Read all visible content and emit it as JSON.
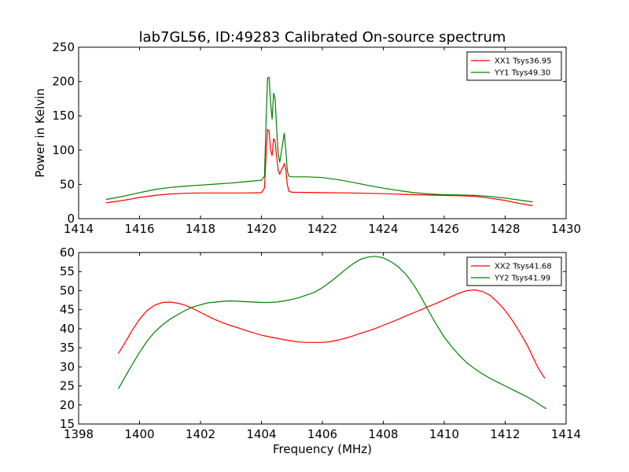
{
  "figure": {
    "title": "lab7GL56, ID:49283 Calibrated On-source spectrum"
  },
  "chart_data": [
    {
      "type": "line",
      "title": "",
      "xlabel": "",
      "ylabel": "Power in Kelvin",
      "xlim": [
        1414,
        1430
      ],
      "ylim": [
        0,
        250
      ],
      "xticks": [
        "1414",
        "1416",
        "1418",
        "1420",
        "1422",
        "1424",
        "1426",
        "1428",
        "1430"
      ],
      "yticks": [
        "0",
        "50",
        "100",
        "150",
        "200",
        "250"
      ],
      "legend_position": "top-right",
      "grid": false,
      "series": [
        {
          "name": "XX1 Tsys36.95",
          "color": "#ff0000",
          "points": [
            [
              1414.9,
              23
            ],
            [
              1415.5,
              27
            ],
            [
              1416.0,
              31
            ],
            [
              1416.5,
              34
            ],
            [
              1417.0,
              36
            ],
            [
              1417.5,
              37
            ],
            [
              1418.0,
              37.5
            ],
            [
              1418.5,
              37.5
            ],
            [
              1419.0,
              37.5
            ],
            [
              1419.5,
              37.5
            ],
            [
              1420.0,
              38
            ],
            [
              1420.1,
              45
            ],
            [
              1420.15,
              90
            ],
            [
              1420.2,
              130
            ],
            [
              1420.25,
              128
            ],
            [
              1420.3,
              100
            ],
            [
              1420.35,
              92
            ],
            [
              1420.4,
              117
            ],
            [
              1420.45,
              112
            ],
            [
              1420.5,
              90
            ],
            [
              1420.55,
              70
            ],
            [
              1420.6,
              65
            ],
            [
              1420.7,
              75
            ],
            [
              1420.75,
              80
            ],
            [
              1420.8,
              72
            ],
            [
              1420.85,
              50
            ],
            [
              1420.9,
              40
            ],
            [
              1421.0,
              38.5
            ],
            [
              1422.0,
              38
            ],
            [
              1423.0,
              37.5
            ],
            [
              1424.0,
              36.5
            ],
            [
              1425.0,
              35
            ],
            [
              1426.0,
              34
            ],
            [
              1426.5,
              33.5
            ],
            [
              1427.0,
              32.5
            ],
            [
              1427.5,
              30
            ],
            [
              1428.0,
              26.5
            ],
            [
              1428.5,
              22
            ],
            [
              1428.9,
              19
            ]
          ]
        },
        {
          "name": "YY1 Tsys49.30",
          "color": "#008000",
          "points": [
            [
              1414.9,
              28
            ],
            [
              1415.5,
              33
            ],
            [
              1416.0,
              38
            ],
            [
              1416.5,
              42.5
            ],
            [
              1417.0,
              45.5
            ],
            [
              1417.5,
              47.5
            ],
            [
              1418.0,
              49
            ],
            [
              1418.5,
              50.5
            ],
            [
              1419.0,
              52
            ],
            [
              1419.5,
              54
            ],
            [
              1420.0,
              56
            ],
            [
              1420.1,
              62
            ],
            [
              1420.15,
              140
            ],
            [
              1420.2,
              205
            ],
            [
              1420.25,
              206
            ],
            [
              1420.3,
              170
            ],
            [
              1420.35,
              145
            ],
            [
              1420.4,
              183
            ],
            [
              1420.45,
              175
            ],
            [
              1420.5,
              130
            ],
            [
              1420.55,
              95
            ],
            [
              1420.6,
              82
            ],
            [
              1420.7,
              110
            ],
            [
              1420.75,
              125
            ],
            [
              1420.8,
              100
            ],
            [
              1420.85,
              70
            ],
            [
              1420.9,
              62
            ],
            [
              1421.0,
              61
            ],
            [
              1421.5,
              61
            ],
            [
              1422.0,
              60
            ],
            [
              1422.5,
              57
            ],
            [
              1423.0,
              53
            ],
            [
              1423.5,
              48.5
            ],
            [
              1424.0,
              44.5
            ],
            [
              1424.5,
              41
            ],
            [
              1425.0,
              38
            ],
            [
              1425.5,
              36
            ],
            [
              1426.0,
              35
            ],
            [
              1426.5,
              34.5
            ],
            [
              1427.0,
              34
            ],
            [
              1427.5,
              32.5
            ],
            [
              1428.0,
              30
            ],
            [
              1428.5,
              27
            ],
            [
              1428.9,
              24.5
            ]
          ]
        }
      ]
    },
    {
      "type": "line",
      "title": "",
      "xlabel": "Frequency (MHz)",
      "ylabel": "",
      "xlim": [
        1398,
        1414
      ],
      "ylim": [
        15,
        60
      ],
      "xticks": [
        "1398",
        "1400",
        "1402",
        "1404",
        "1406",
        "1408",
        "1410",
        "1412",
        "1414"
      ],
      "yticks": [
        "15",
        "20",
        "25",
        "30",
        "35",
        "40",
        "45",
        "50",
        "55",
        "60"
      ],
      "legend_position": "top-right",
      "grid": false,
      "series": [
        {
          "name": "XX2 Tsys41.68",
          "color": "#ff0000",
          "points": [
            [
              1399.3,
              33.5
            ],
            [
              1399.5,
              36
            ],
            [
              1399.75,
              39.5
            ],
            [
              1400.0,
              42.5
            ],
            [
              1400.25,
              44.8
            ],
            [
              1400.5,
              46.2
            ],
            [
              1400.75,
              46.9
            ],
            [
              1401.0,
              47
            ],
            [
              1401.25,
              46.7
            ],
            [
              1401.5,
              46.2
            ],
            [
              1401.75,
              45.3
            ],
            [
              1402.0,
              44.3
            ],
            [
              1402.25,
              43.3
            ],
            [
              1402.5,
              42.3
            ],
            [
              1402.75,
              41.5
            ],
            [
              1403.0,
              40.8
            ],
            [
              1403.25,
              40.2
            ],
            [
              1403.5,
              39.5
            ],
            [
              1403.75,
              38.9
            ],
            [
              1404.0,
              38.3
            ],
            [
              1404.25,
              37.9
            ],
            [
              1404.5,
              37.5
            ],
            [
              1404.75,
              37.1
            ],
            [
              1405.0,
              36.8
            ],
            [
              1405.25,
              36.5
            ],
            [
              1405.5,
              36.4
            ],
            [
              1405.75,
              36.4
            ],
            [
              1406.0,
              36.4
            ],
            [
              1406.25,
              36.6
            ],
            [
              1406.5,
              37
            ],
            [
              1406.75,
              37.5
            ],
            [
              1407.0,
              38.1
            ],
            [
              1407.25,
              38.8
            ],
            [
              1407.5,
              39.4
            ],
            [
              1407.75,
              40.1
            ],
            [
              1408.0,
              40.9
            ],
            [
              1408.25,
              41.7
            ],
            [
              1408.5,
              42.5
            ],
            [
              1408.75,
              43.4
            ],
            [
              1409.0,
              44.2
            ],
            [
              1409.25,
              45
            ],
            [
              1409.5,
              45.9
            ],
            [
              1409.75,
              46.7
            ],
            [
              1410.0,
              47.6
            ],
            [
              1410.25,
              48.5
            ],
            [
              1410.5,
              49.4
            ],
            [
              1410.75,
              50
            ],
            [
              1411.0,
              50.2
            ],
            [
              1411.25,
              49.8
            ],
            [
              1411.5,
              48.8
            ],
            [
              1411.75,
              47
            ],
            [
              1412.0,
              44.8
            ],
            [
              1412.25,
              42
            ],
            [
              1412.5,
              38.8
            ],
            [
              1412.75,
              35.3
            ],
            [
              1413.0,
              31
            ],
            [
              1413.1,
              29.5
            ],
            [
              1413.3,
              27
            ]
          ]
        },
        {
          "name": "YY2 Tsys41.99",
          "color": "#008000",
          "points": [
            [
              1399.3,
              24.2
            ],
            [
              1399.5,
              27
            ],
            [
              1399.75,
              30.5
            ],
            [
              1400.0,
              33.8
            ],
            [
              1400.25,
              36.8
            ],
            [
              1400.5,
              39.2
            ],
            [
              1400.75,
              41
            ],
            [
              1401.0,
              42.5
            ],
            [
              1401.25,
              43.7
            ],
            [
              1401.5,
              44.8
            ],
            [
              1401.75,
              45.7
            ],
            [
              1402.0,
              46.3
            ],
            [
              1402.25,
              46.8
            ],
            [
              1402.5,
              47
            ],
            [
              1402.75,
              47.2
            ],
            [
              1403.0,
              47.3
            ],
            [
              1403.25,
              47.2
            ],
            [
              1403.5,
              47.1
            ],
            [
              1403.75,
              47
            ],
            [
              1404.0,
              46.9
            ],
            [
              1404.25,
              46.9
            ],
            [
              1404.5,
              47
            ],
            [
              1404.75,
              47.3
            ],
            [
              1405.0,
              47.7
            ],
            [
              1405.25,
              48.2
            ],
            [
              1405.5,
              48.9
            ],
            [
              1405.75,
              49.6
            ],
            [
              1406.0,
              50.8
            ],
            [
              1406.25,
              52.2
            ],
            [
              1406.5,
              53.8
            ],
            [
              1406.75,
              55.5
            ],
            [
              1407.0,
              57
            ],
            [
              1407.25,
              58.2
            ],
            [
              1407.5,
              58.8
            ],
            [
              1407.75,
              59
            ],
            [
              1408.0,
              58.6
            ],
            [
              1408.25,
              57.6
            ],
            [
              1408.5,
              56.2
            ],
            [
              1408.75,
              54.2
            ],
            [
              1409.0,
              51.5
            ],
            [
              1409.25,
              48.2
            ],
            [
              1409.5,
              44.5
            ],
            [
              1409.75,
              41
            ],
            [
              1410.0,
              37.8
            ],
            [
              1410.25,
              35.2
            ],
            [
              1410.5,
              33
            ],
            [
              1410.75,
              31
            ],
            [
              1411.0,
              29.5
            ],
            [
              1411.25,
              28.2
            ],
            [
              1411.5,
              27
            ],
            [
              1411.75,
              26
            ],
            [
              1412.0,
              25
            ],
            [
              1412.25,
              24
            ],
            [
              1412.5,
              23
            ],
            [
              1412.75,
              22
            ],
            [
              1413.0,
              20.8
            ],
            [
              1413.25,
              19.5
            ],
            [
              1413.35,
              19
            ]
          ]
        }
      ]
    }
  ]
}
